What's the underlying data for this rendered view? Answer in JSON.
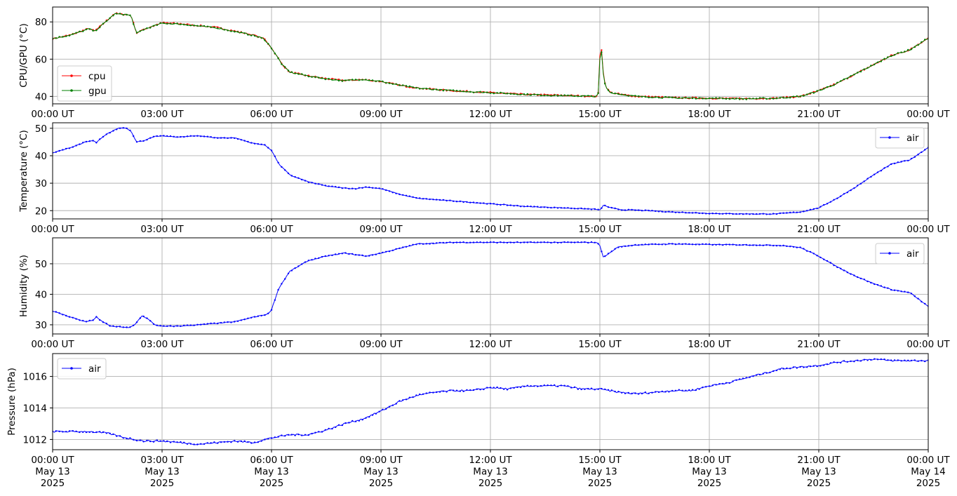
{
  "chart_data": [
    {
      "type": "line",
      "ylabel": "CPU/GPU (°C)",
      "ylim": [
        36,
        88
      ],
      "yticks": [
        40,
        60,
        80
      ],
      "xlim": [
        0,
        24
      ],
      "xticks": [
        0,
        3,
        6,
        9,
        12,
        15,
        18,
        21,
        24
      ],
      "xtick_labels": [
        "00:00 UT",
        "03:00 UT",
        "06:00 UT",
        "09:00 UT",
        "12:00 UT",
        "15:00 UT",
        "18:00 UT",
        "21:00 UT",
        "00:00 UT"
      ],
      "grid": true,
      "legend": "lower-left",
      "series": [
        {
          "name": "cpu",
          "color": "#ff0000",
          "x": [
            0,
            0.5,
            1.0,
            1.15,
            1.3,
            1.5,
            1.7,
            2.0,
            2.15,
            2.3,
            2.5,
            3.0,
            3.5,
            4.0,
            4.5,
            5.0,
            5.5,
            5.8,
            6.0,
            6.3,
            6.5,
            7.0,
            7.5,
            8.0,
            8.5,
            9.0,
            9.5,
            10.0,
            11.0,
            12.0,
            13.0,
            14.0,
            14.95,
            15.0,
            15.03,
            15.06,
            15.12,
            15.2,
            15.3,
            15.6,
            16.0,
            17.0,
            18.0,
            19.0,
            19.8,
            20.5,
            21.0,
            21.5,
            22.0,
            22.5,
            23.0,
            23.5,
            24.0
          ],
          "y": [
            71,
            73,
            76.5,
            75,
            77.5,
            81,
            84.5,
            84,
            83.5,
            74,
            76,
            79.5,
            79,
            78,
            77,
            75,
            73,
            71,
            66,
            57,
            53,
            51,
            49.5,
            48.5,
            49,
            48,
            46,
            44.5,
            43,
            42,
            41,
            40.5,
            40,
            62,
            71,
            60,
            48,
            44,
            42,
            41,
            40,
            39.3,
            39,
            38.8,
            39,
            40,
            43,
            47,
            52,
            57,
            62,
            65,
            71.5
          ]
        },
        {
          "name": "gpu",
          "color": "#008000",
          "x": [
            0,
            0.5,
            1.0,
            1.15,
            1.3,
            1.5,
            1.7,
            2.0,
            2.15,
            2.3,
            2.5,
            3.0,
            3.5,
            4.0,
            4.5,
            5.0,
            5.5,
            5.8,
            6.0,
            6.3,
            6.5,
            7.0,
            7.5,
            8.0,
            8.5,
            9.0,
            9.5,
            10.0,
            11.0,
            12.0,
            13.0,
            14.0,
            14.95,
            15.0,
            15.03,
            15.06,
            15.12,
            15.2,
            15.3,
            15.6,
            16.0,
            17.0,
            18.0,
            19.0,
            19.8,
            20.5,
            21.0,
            21.5,
            22.0,
            22.5,
            23.0,
            23.5,
            24.0
          ],
          "y": [
            71,
            73,
            76.3,
            75,
            77.3,
            80.8,
            84.3,
            84,
            83.3,
            73.8,
            76,
            79.3,
            78.8,
            77.8,
            76.8,
            74.8,
            72.8,
            70.8,
            66,
            56.8,
            53,
            51,
            49.4,
            48.4,
            49.2,
            48,
            46,
            44.4,
            43,
            42,
            41,
            40.4,
            40,
            60,
            70,
            58,
            47.5,
            43.8,
            42,
            41,
            40,
            39.2,
            39,
            38.7,
            39,
            40,
            43,
            47,
            52,
            57,
            62,
            65,
            71.3
          ]
        }
      ]
    },
    {
      "type": "line",
      "ylabel": "Temperature (°C)",
      "ylim": [
        17,
        52
      ],
      "yticks": [
        20,
        30,
        40,
        50
      ],
      "xlim": [
        0,
        24
      ],
      "xticks": [
        0,
        3,
        6,
        9,
        12,
        15,
        18,
        21,
        24
      ],
      "xtick_labels": [
        "00:00 UT",
        "03:00 UT",
        "06:00 UT",
        "09:00 UT",
        "12:00 UT",
        "15:00 UT",
        "18:00 UT",
        "21:00 UT",
        "00:00 UT"
      ],
      "grid": true,
      "legend": "top-right",
      "series": [
        {
          "name": "air",
          "color": "#0000ff",
          "x": [
            0,
            0.5,
            0.9,
            1.1,
            1.2,
            1.3,
            1.5,
            1.8,
            2.0,
            2.15,
            2.3,
            2.5,
            2.8,
            3.0,
            3.5,
            4.0,
            4.5,
            5.0,
            5.5,
            5.8,
            6.0,
            6.2,
            6.5,
            7.0,
            7.5,
            8.0,
            8.3,
            8.6,
            9.0,
            9.5,
            10.0,
            11.0,
            12.0,
            13.0,
            14.0,
            14.9,
            15.0,
            15.1,
            15.3,
            15.6,
            16.0,
            17.0,
            18.0,
            19.0,
            19.8,
            20.5,
            21.0,
            21.5,
            22.0,
            22.5,
            23.0,
            23.5,
            24.0
          ],
          "y": [
            41,
            43,
            45,
            45.5,
            44.8,
            46,
            48,
            50,
            50.2,
            49,
            45,
            45.5,
            47,
            47.2,
            46.8,
            47.3,
            46.5,
            46.5,
            44.5,
            44,
            42,
            37,
            33,
            30.5,
            29,
            28.2,
            28,
            28.6,
            28,
            26,
            24.5,
            23.5,
            22.5,
            21.5,
            21,
            20.5,
            20.2,
            22,
            21,
            20.3,
            20.2,
            19.5,
            19,
            18.8,
            18.8,
            19.5,
            21,
            24.5,
            28.5,
            33,
            37,
            38.5,
            43
          ]
        }
      ]
    },
    {
      "type": "line",
      "ylabel": "Humidity (%)",
      "ylim": [
        27,
        58.5
      ],
      "yticks": [
        30,
        40,
        50
      ],
      "xlim": [
        0,
        24
      ],
      "xticks": [
        0,
        3,
        6,
        9,
        12,
        15,
        18,
        21,
        24
      ],
      "xtick_labels": [
        "00:00 UT",
        "03:00 UT",
        "06:00 UT",
        "09:00 UT",
        "12:00 UT",
        "15:00 UT",
        "18:00 UT",
        "21:00 UT",
        "00:00 UT"
      ],
      "grid": true,
      "legend": "top-right",
      "series": [
        {
          "name": "air",
          "color": "#0000ff",
          "x": [
            0,
            0.5,
            0.9,
            1.1,
            1.2,
            1.3,
            1.6,
            1.9,
            2.1,
            2.25,
            2.45,
            2.6,
            2.8,
            3.0,
            3.5,
            4.0,
            4.5,
            5.0,
            5.5,
            5.9,
            6.0,
            6.2,
            6.5,
            7.0,
            7.5,
            8.0,
            8.3,
            8.6,
            9.0,
            9.5,
            10.0,
            11.0,
            12.0,
            13.0,
            14.0,
            14.9,
            15.0,
            15.1,
            15.2,
            15.5,
            16.0,
            17.0,
            18.0,
            19.0,
            20.0,
            20.5,
            21.0,
            21.5,
            22.0,
            22.5,
            23.0,
            23.5,
            24.0
          ],
          "y": [
            34.5,
            32.5,
            31,
            31.5,
            32.5,
            31.5,
            29.5,
            29.3,
            29,
            30,
            33,
            32,
            30,
            29.5,
            29.6,
            30,
            30.5,
            31,
            32.5,
            33.5,
            35,
            42,
            47.5,
            51,
            52.5,
            53.5,
            53,
            52.5,
            53.5,
            55,
            56.5,
            57,
            57,
            57,
            57,
            57,
            56,
            52,
            53,
            55.5,
            56.2,
            56.5,
            56.3,
            56.2,
            56,
            55.3,
            52.5,
            49,
            46,
            43.5,
            41.5,
            40.5,
            36
          ]
        }
      ]
    },
    {
      "type": "line",
      "ylabel": "Pressure (hPa)",
      "ylim": [
        1011.35,
        1017.45
      ],
      "yticks": [
        1012,
        1014,
        1016
      ],
      "xlim": [
        0,
        24
      ],
      "xticks": [
        0,
        3,
        6,
        9,
        12,
        15,
        18,
        21,
        24
      ],
      "xtick_labels": [
        [
          "00:00 UT",
          "May 13",
          "2025"
        ],
        [
          "03:00 UT",
          "May 13",
          "2025"
        ],
        [
          "06:00 UT",
          "May 13",
          "2025"
        ],
        [
          "09:00 UT",
          "May 13",
          "2025"
        ],
        [
          "12:00 UT",
          "May 13",
          "2025"
        ],
        [
          "15:00 UT",
          "May 13",
          "2025"
        ],
        [
          "18:00 UT",
          "May 13",
          "2025"
        ],
        [
          "21:00 UT",
          "May 13",
          "2025"
        ],
        [
          "00:00 UT",
          "May 14",
          "2025"
        ]
      ],
      "grid": true,
      "legend": "top-left",
      "series": [
        {
          "name": "air",
          "color": "#0000ff",
          "x": [
            0,
            0.5,
            1.0,
            1.5,
            2.0,
            2.5,
            3.0,
            3.5,
            4.0,
            4.5,
            5.0,
            5.5,
            6.0,
            6.5,
            7.0,
            7.5,
            8.0,
            8.5,
            9.0,
            9.5,
            10.0,
            10.5,
            11.0,
            11.5,
            12.0,
            12.5,
            13.0,
            13.5,
            14.0,
            14.5,
            15.0,
            15.5,
            16.0,
            16.5,
            17.0,
            17.5,
            18.0,
            18.5,
            19.0,
            19.5,
            20.0,
            20.5,
            21.0,
            21.5,
            22.0,
            22.5,
            23.0,
            23.5,
            24.0
          ],
          "y": [
            1012.5,
            1012.5,
            1012.5,
            1012.4,
            1012.1,
            1011.9,
            1011.9,
            1011.8,
            1011.7,
            1011.8,
            1011.9,
            1011.8,
            1012.1,
            1012.3,
            1012.3,
            1012.6,
            1013,
            1013.3,
            1013.8,
            1014.4,
            1014.8,
            1015,
            1015.1,
            1015.1,
            1015.3,
            1015.2,
            1015.4,
            1015.4,
            1015.4,
            1015.2,
            1015.2,
            1015,
            1014.9,
            1015,
            1015.1,
            1015.1,
            1015.4,
            1015.6,
            1015.9,
            1016.2,
            1016.5,
            1016.6,
            1016.7,
            1016.9,
            1017,
            1017.1,
            1017,
            1017,
            1017
          ]
        }
      ]
    }
  ]
}
